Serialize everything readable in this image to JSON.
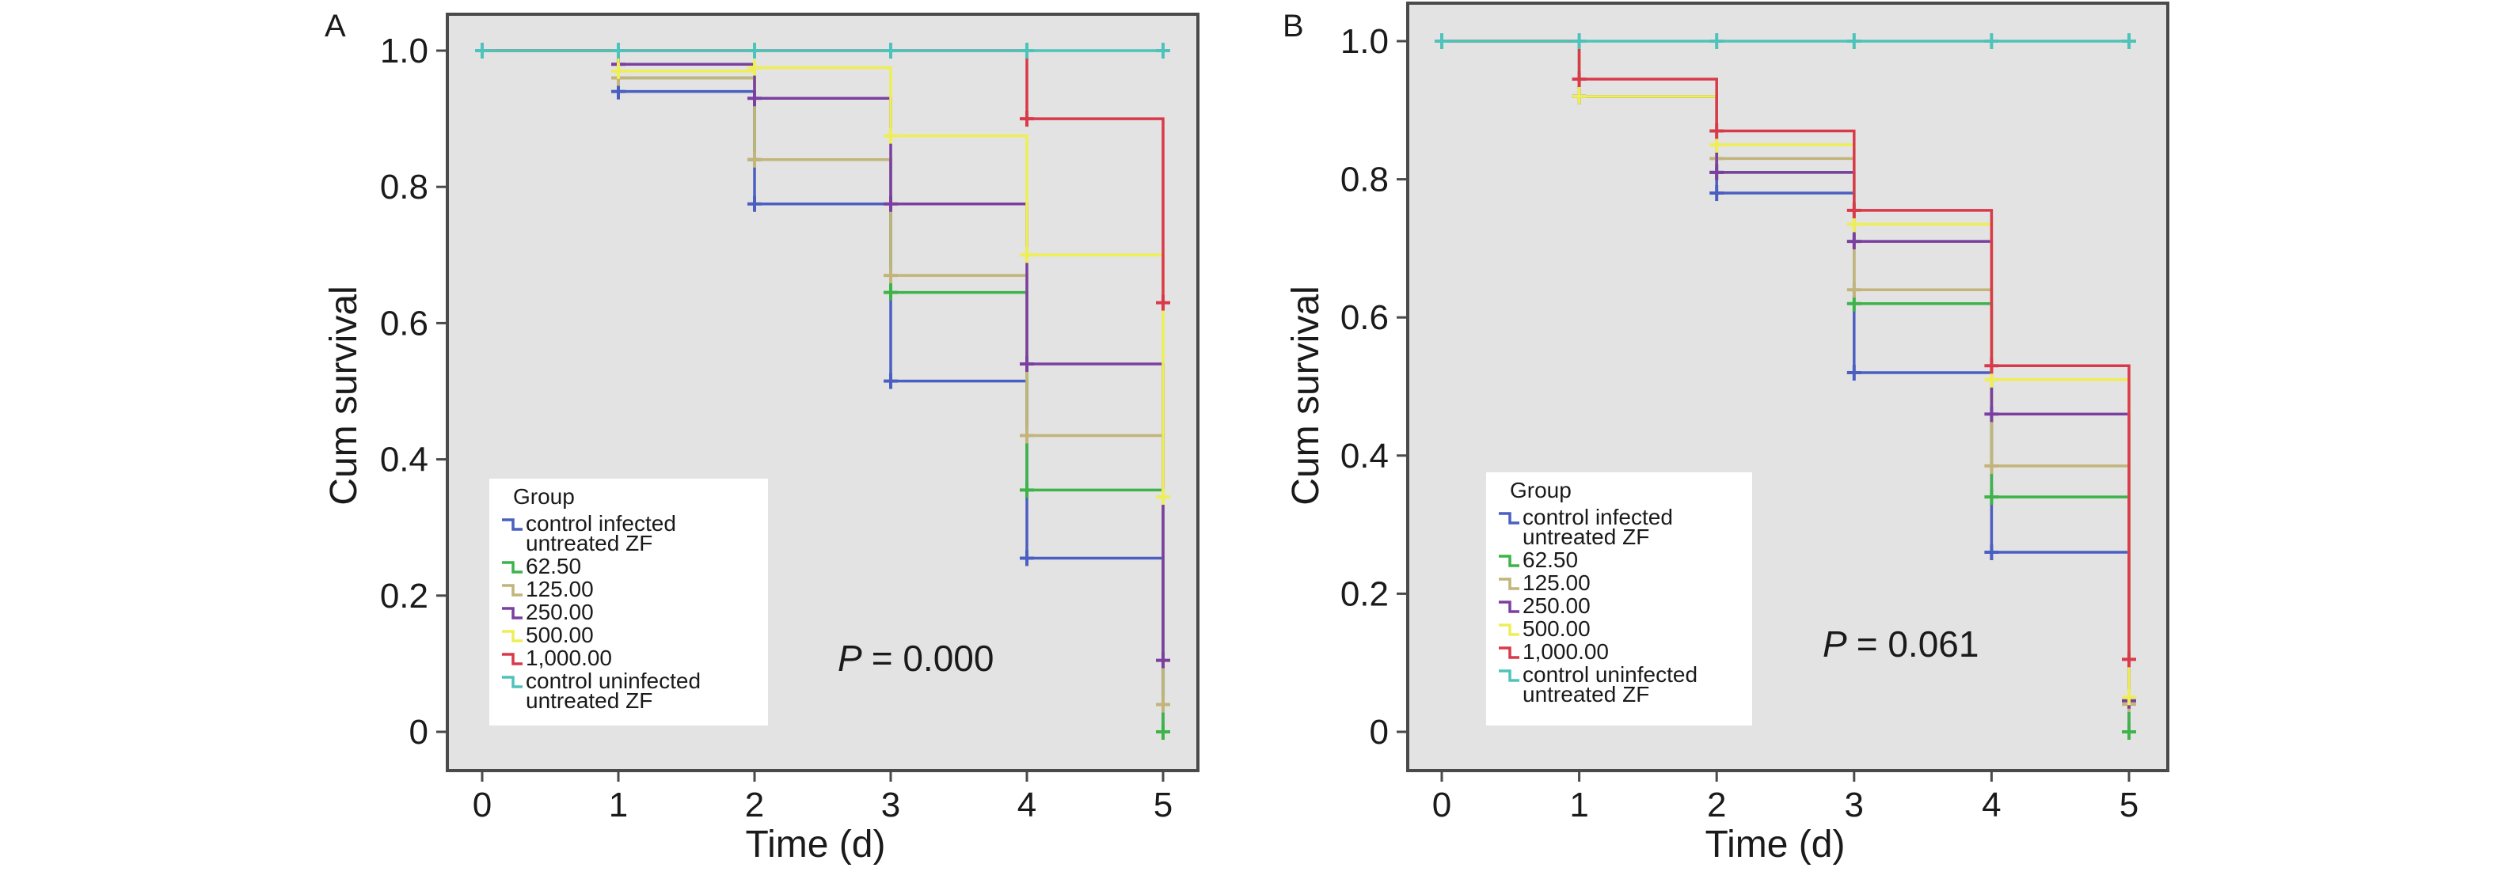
{
  "chart_data": [
    {
      "type": "line",
      "subtype": "kaplan-meier-step",
      "panel": "A",
      "title": "",
      "xlabel": "Time (d)",
      "ylabel": "Cum survival",
      "xlim": [
        0,
        5
      ],
      "ylim": [
        0,
        1
      ],
      "x_ticks": [
        "0",
        "1",
        "2",
        "3",
        "4",
        "5"
      ],
      "y_ticks": [
        "0",
        "0.2",
        "0.4",
        "0.6",
        "0.8",
        "1.0"
      ],
      "p_prefix": "P",
      "p_value": "= 0.000",
      "legend": {
        "title": "Group",
        "position": "bottom-left"
      },
      "series": [
        {
          "name": "control infected untreated ZF",
          "label_lines": [
            "control infected",
            "untreated ZF"
          ],
          "color": "#4a5fc1",
          "values": [
            1.0,
            0.94,
            0.775,
            0.515,
            0.255,
            0.0
          ]
        },
        {
          "name": "62.50",
          "label_lines": [
            "62.50"
          ],
          "color": "#3db34a",
          "values": [
            1.0,
            0.96,
            0.84,
            0.645,
            0.355,
            0.0
          ]
        },
        {
          "name": "125.00",
          "label_lines": [
            "125.00"
          ],
          "color": "#c2b47a",
          "values": [
            1.0,
            0.96,
            0.84,
            0.67,
            0.435,
            0.04
          ]
        },
        {
          "name": "250.00",
          "label_lines": [
            "250.00"
          ],
          "color": "#7b3fa0",
          "values": [
            1.0,
            0.98,
            0.93,
            0.775,
            0.54,
            0.105
          ]
        },
        {
          "name": "500.00",
          "label_lines": [
            "500.00"
          ],
          "color": "#eeee55",
          "values": [
            1.0,
            0.97,
            0.975,
            0.875,
            0.7,
            0.345
          ]
        },
        {
          "name": "1,000.00",
          "label_lines": [
            "1,000.00"
          ],
          "color": "#d93a4a",
          "values": [
            1.0,
            1.0,
            1.0,
            1.0,
            0.9,
            0.63
          ]
        },
        {
          "name": "control uninfected untreated ZF",
          "label_lines": [
            "control uninfected",
            "untreated ZF"
          ],
          "color": "#4fc3b9",
          "values": [
            1.0,
            1.0,
            1.0,
            1.0,
            1.0,
            1.0
          ]
        }
      ]
    },
    {
      "type": "line",
      "subtype": "kaplan-meier-step",
      "panel": "B",
      "title": "",
      "xlabel": "Time (d)",
      "ylabel": "Cum survival",
      "xlim": [
        0,
        5
      ],
      "ylim": [
        0,
        1
      ],
      "x_ticks": [
        "0",
        "1",
        "2",
        "3",
        "4",
        "5"
      ],
      "y_ticks": [
        "0",
        "0.2",
        "0.4",
        "0.6",
        "0.8",
        "1.0"
      ],
      "p_prefix": "P",
      "p_value": "= 0.061",
      "legend": {
        "title": "Group",
        "position": "bottom-left"
      },
      "series": [
        {
          "name": "control infected untreated ZF",
          "label_lines": [
            "control infected",
            "untreated ZF"
          ],
          "color": "#4a5fc1",
          "values": [
            1.0,
            0.92,
            0.78,
            0.52,
            0.26,
            0.0
          ]
        },
        {
          "name": "62.50",
          "label_lines": [
            "62.50"
          ],
          "color": "#3db34a",
          "values": [
            1.0,
            0.92,
            0.81,
            0.62,
            0.34,
            0.0
          ]
        },
        {
          "name": "125.00",
          "label_lines": [
            "125.00"
          ],
          "color": "#c2b47a",
          "values": [
            1.0,
            0.92,
            0.83,
            0.64,
            0.385,
            0.04
          ]
        },
        {
          "name": "250.00",
          "label_lines": [
            "250.00"
          ],
          "color": "#7b3fa0",
          "values": [
            1.0,
            0.92,
            0.81,
            0.71,
            0.46,
            0.045
          ]
        },
        {
          "name": "500.00",
          "label_lines": [
            "500.00"
          ],
          "color": "#eeee55",
          "values": [
            1.0,
            0.92,
            0.85,
            0.735,
            0.51,
            0.05
          ]
        },
        {
          "name": "1,000.00",
          "label_lines": [
            "1,000.00"
          ],
          "color": "#d93a4a",
          "values": [
            1.0,
            0.945,
            0.87,
            0.755,
            0.53,
            0.105
          ]
        },
        {
          "name": "control uninfected untreated ZF",
          "label_lines": [
            "control uninfected",
            "untreated ZF"
          ],
          "color": "#4fc3b9",
          "values": [
            1.0,
            1.0,
            1.0,
            1.0,
            1.0,
            1.0
          ]
        }
      ]
    }
  ]
}
